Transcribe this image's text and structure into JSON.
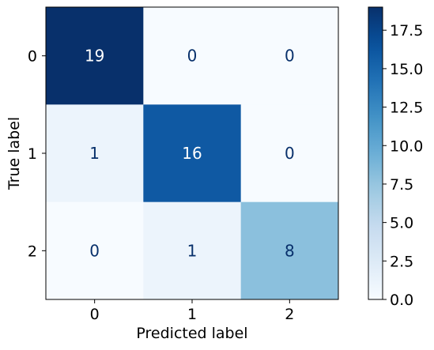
{
  "chart_data": {
    "type": "heatmap",
    "title": "",
    "xlabel": "Predicted label",
    "ylabel": "True label",
    "x_categories": [
      "0",
      "1",
      "2"
    ],
    "y_categories": [
      "0",
      "1",
      "2"
    ],
    "matrix": [
      [
        19,
        0,
        0
      ],
      [
        1,
        16,
        0
      ],
      [
        0,
        1,
        8
      ]
    ],
    "colormap": "Blues",
    "colorbar": {
      "range": [
        0,
        19
      ],
      "ticks": [
        "0.0",
        "2.5",
        "5.0",
        "7.5",
        "10.0",
        "12.5",
        "15.0",
        "17.5"
      ]
    },
    "grid": false
  }
}
